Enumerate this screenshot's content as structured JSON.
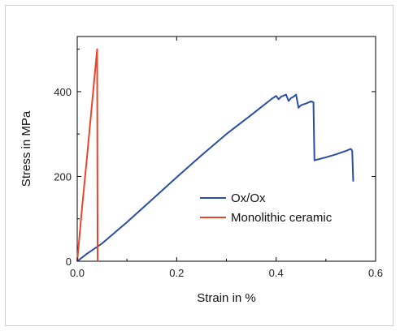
{
  "chart_data": {
    "type": "line",
    "xlabel": "Strain in %",
    "ylabel": "Stress in MPa",
    "xlim": [
      0.0,
      0.6
    ],
    "ylim": [
      0,
      530
    ],
    "x_ticks": [
      0.0,
      0.2,
      0.4,
      0.6
    ],
    "x_tick_labels": [
      "0.0",
      "0.2",
      "0.4",
      "0.6"
    ],
    "y_ticks": [
      0,
      200,
      400
    ],
    "y_tick_labels": [
      "0",
      "200",
      "400"
    ],
    "grid": false,
    "legend_position": "center-right",
    "series": [
      {
        "name": "Ox/Ox",
        "color": "#2b4ea2",
        "points": [
          [
            0.0,
            0
          ],
          [
            0.02,
            18
          ],
          [
            0.05,
            42
          ],
          [
            0.1,
            92
          ],
          [
            0.15,
            145
          ],
          [
            0.2,
            198
          ],
          [
            0.25,
            250
          ],
          [
            0.3,
            300
          ],
          [
            0.35,
            345
          ],
          [
            0.39,
            382
          ],
          [
            0.4,
            390
          ],
          [
            0.405,
            382
          ],
          [
            0.41,
            388
          ],
          [
            0.42,
            393
          ],
          [
            0.425,
            378
          ],
          [
            0.43,
            385
          ],
          [
            0.435,
            388
          ],
          [
            0.44,
            393
          ],
          [
            0.445,
            362
          ],
          [
            0.45,
            368
          ],
          [
            0.46,
            372
          ],
          [
            0.47,
            377
          ],
          [
            0.475,
            375
          ],
          [
            0.477,
            238
          ],
          [
            0.5,
            245
          ],
          [
            0.52,
            252
          ],
          [
            0.54,
            260
          ],
          [
            0.55,
            265
          ],
          [
            0.553,
            260
          ],
          [
            0.555,
            188
          ]
        ]
      },
      {
        "name": "Monolithic ceramic",
        "color": "#e8452a",
        "points": [
          [
            0.0,
            0
          ],
          [
            0.01,
            130
          ],
          [
            0.02,
            250
          ],
          [
            0.03,
            375
          ],
          [
            0.04,
            500
          ],
          [
            0.041,
            0
          ]
        ]
      }
    ]
  }
}
